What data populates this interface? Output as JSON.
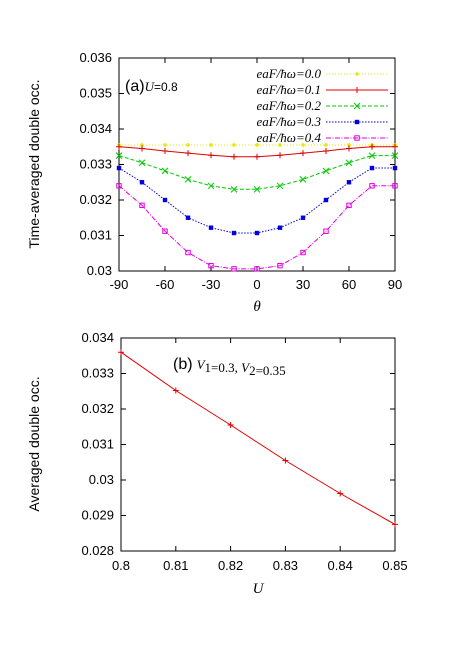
{
  "chart_data": [
    {
      "type": "line",
      "panel_label": "(a)",
      "annotation_var": "U",
      "annotation_val": "=0.8",
      "xlabel": "θ",
      "ylabel": "Time-averaged double occ.",
      "xlim": [
        -90,
        90
      ],
      "ylim": [
        0.03,
        0.036
      ],
      "xticks": [
        "-90",
        "-60",
        "-30",
        "0",
        "30",
        "60",
        "90"
      ],
      "yticks": [
        "0.03",
        "0.031",
        "0.032",
        "0.033",
        "0.034",
        "0.035",
        "0.036"
      ],
      "legend_position": "top-right",
      "x": [
        -90,
        -75,
        -60,
        -45,
        -30,
        -15,
        0,
        15,
        30,
        45,
        60,
        75,
        90
      ],
      "series": [
        {
          "name": "eaF/ħω=0.0",
          "color": "#e8e800",
          "marker": "dot",
          "values": [
            0.03355,
            0.03355,
            0.03355,
            0.03355,
            0.03355,
            0.03355,
            0.03355,
            0.03355,
            0.03355,
            0.03355,
            0.03355,
            0.03355,
            0.03355
          ]
        },
        {
          "name": "eaF/ħω=0.1",
          "color": "#e00000",
          "marker": "plus",
          "values": [
            0.0335,
            0.03345,
            0.03338,
            0.03332,
            0.03326,
            0.03322,
            0.03322,
            0.03326,
            0.03332,
            0.03338,
            0.03345,
            0.0335,
            0.0335
          ]
        },
        {
          "name": "eaF/ħω=0.2",
          "color": "#00c800",
          "marker": "cross",
          "values": [
            0.03325,
            0.03305,
            0.03282,
            0.03258,
            0.0324,
            0.0323,
            0.0323,
            0.0324,
            0.03258,
            0.03282,
            0.03305,
            0.03325,
            0.03325
          ]
        },
        {
          "name": "eaF/ħω=0.3",
          "color": "#0000e0",
          "marker": "square",
          "values": [
            0.0329,
            0.0325,
            0.032,
            0.0315,
            0.03122,
            0.03107,
            0.03107,
            0.03122,
            0.0315,
            0.032,
            0.0325,
            0.0329,
            0.0329
          ]
        },
        {
          "name": "eaF/ħω=0.4",
          "color": "#e000e0",
          "marker": "open-square",
          "values": [
            0.0324,
            0.03185,
            0.03112,
            0.03052,
            0.03015,
            0.03006,
            0.03006,
            0.03015,
            0.03052,
            0.03112,
            0.03185,
            0.0324,
            0.0324
          ]
        }
      ]
    },
    {
      "type": "line",
      "panel_label": "(b)",
      "annotation_parts": [
        {
          "text": "V",
          "italic": true
        },
        {
          "text": "1",
          "sub": true
        },
        {
          "text": "=0.3,  "
        },
        {
          "text": "V",
          "italic": true
        },
        {
          "text": "2",
          "sub": true
        },
        {
          "text": "=0.35"
        }
      ],
      "xlabel": "U",
      "ylabel": "Averaged double occ.",
      "xlim": [
        0.8,
        0.85
      ],
      "ylim": [
        0.028,
        0.034
      ],
      "xticks": [
        "0.8",
        "0.81",
        "0.82",
        "0.83",
        "0.84",
        "0.85"
      ],
      "yticks": [
        "0.028",
        "0.029",
        "0.03",
        "0.031",
        "0.032",
        "0.033",
        "0.034"
      ],
      "x": [
        0.8,
        0.81,
        0.82,
        0.83,
        0.84,
        0.85
      ],
      "series": [
        {
          "color": "#e00000",
          "marker": "plus",
          "values": [
            0.0336,
            0.03252,
            0.03155,
            0.03055,
            0.02962,
            0.02875
          ]
        }
      ]
    }
  ]
}
